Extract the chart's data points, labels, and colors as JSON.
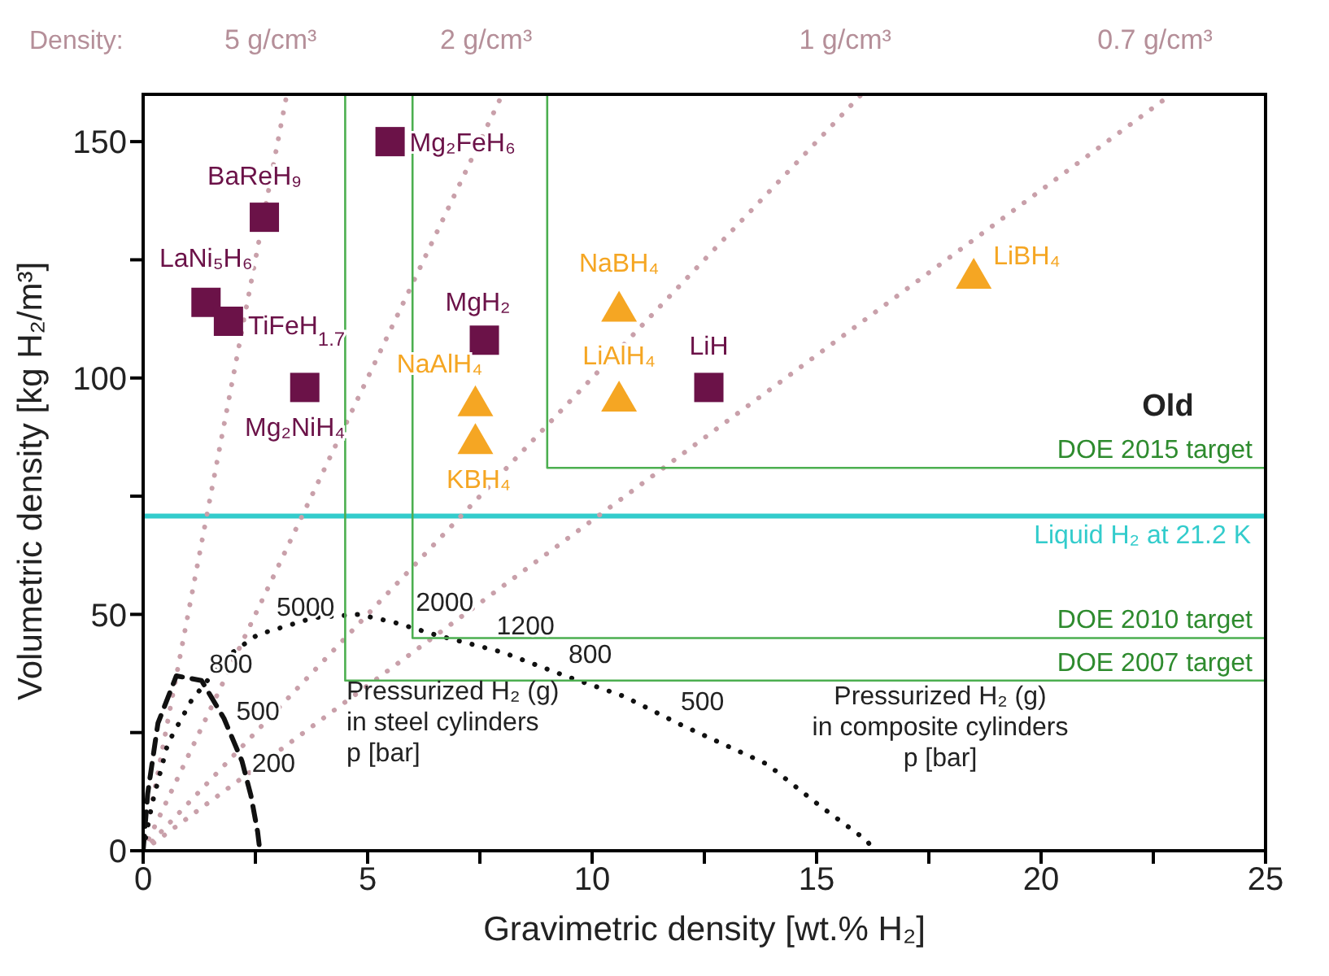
{
  "chart_data": {
    "type": "scatter",
    "xlabel": "Gravimetric density [wt.% H₂]",
    "ylabel": "Volumetric density [kg H₂/m³]",
    "xlim": [
      0,
      25
    ],
    "ylim": [
      0,
      160
    ],
    "xticks": [
      0,
      {
        "value": 2.5,
        "label": null
      },
      5,
      {
        "value": 7.5,
        "label": null
      },
      10,
      {
        "value": 12.5,
        "label": null
      },
      15,
      {
        "value": 17.5,
        "label": null
      },
      20,
      {
        "value": 22.5,
        "label": null
      },
      25
    ],
    "yticks": [
      0,
      {
        "value": 25,
        "label": null
      },
      50,
      {
        "value": 75,
        "label": null
      },
      100,
      {
        "value": 125,
        "label": null
      },
      150
    ],
    "series": [
      {
        "marker": "square",
        "color": "#6b1248",
        "x": [
          5.5,
          2.7,
          1.4,
          1.9,
          3.6,
          7.6,
          12.6
        ],
        "values": [
          150,
          134,
          116,
          112,
          98,
          108,
          98
        ]
      },
      {
        "marker": "triangle",
        "color": "#f5a623",
        "x": [
          10.6,
          10.6,
          7.4,
          7.4,
          18.5
        ],
        "values": [
          115,
          96,
          95,
          87,
          122
        ]
      },
      {
        "type": "line",
        "name": "5 g/cm³",
        "color": "#c9a0aa",
        "line_style": "dotted",
        "x": [
          0,
          3.2
        ],
        "values": [
          0,
          160
        ]
      },
      {
        "type": "line",
        "name": "2 g/cm³",
        "color": "#c9a0aa",
        "line_style": "dotted",
        "x": [
          0,
          8
        ],
        "values": [
          0,
          160
        ]
      },
      {
        "type": "line",
        "name": "1 g/cm³",
        "color": "#c9a0aa",
        "line_style": "dotted",
        "x": [
          0,
          16
        ],
        "values": [
          0,
          160
        ]
      },
      {
        "type": "line",
        "name": "0.7 g/cm³",
        "color": "#c9a0aa",
        "line_style": "dotted",
        "x": [
          0,
          22.9
        ],
        "values": [
          0,
          160
        ]
      },
      {
        "type": "line",
        "name": "DOE 2015 target",
        "color": "#4caf50",
        "line_style": "solid",
        "x": [
          9,
          9,
          25
        ],
        "values": [
          160,
          81,
          81
        ]
      },
      {
        "type": "line",
        "name": "DOE 2010 target",
        "color": "#4caf50",
        "line_style": "solid",
        "x": [
          6,
          6,
          25
        ],
        "values": [
          160,
          45,
          45
        ]
      },
      {
        "type": "line",
        "name": "DOE 2007 target",
        "color": "#4caf50",
        "line_style": "solid",
        "x": [
          4.5,
          4.5,
          25
        ],
        "values": [
          160,
          36,
          36
        ]
      },
      {
        "type": "line",
        "color": "#111111",
        "line_style": "dotted",
        "x": [
          0,
          0.2,
          0.55,
          1.07,
          1.85,
          2.55,
          3.8,
          4.8,
          5.6,
          6.5,
          8,
          9.4,
          10.7,
          11.9,
          13.9,
          15.1,
          16.1,
          16.3
        ],
        "values": [
          0,
          10,
          22.7,
          31.7,
          41,
          45.7,
          49.3,
          50,
          48.3,
          45.7,
          42,
          37,
          32.7,
          27,
          18.3,
          9.3,
          2.3,
          0
        ]
      },
      {
        "type": "line",
        "color": "#111111",
        "line_style": "dashed",
        "x": [
          0,
          0.1,
          0.33,
          0.74,
          1.3,
          1.8,
          2.2,
          2.4,
          2.55,
          2.6
        ],
        "values": [
          0,
          12,
          27,
          37,
          36,
          28,
          19,
          11.7,
          4,
          0
        ]
      }
    ],
    "ref_lines": [
      {
        "axis": "y",
        "value": 70.8,
        "label": "Liquid H₂ at 21.2 K",
        "color": "#33cccc"
      }
    ],
    "annotations": [
      "Density:",
      "Old",
      "Pressurized H₂ (g)\nin steel cylinders\np [bar]",
      "Pressurized H₂ (g)\nin composite cylinders\np [bar]",
      {
        "text": "Mg₂FeH₆",
        "x": 5.5,
        "y": 150
      },
      {
        "text": "BaReH₉",
        "x": 2.7,
        "y": 134
      },
      {
        "text": "LaNi₅H₆",
        "x": 1.4,
        "y": 116
      },
      {
        "text": "TiFeH$_{1.7}$",
        "x": 1.9,
        "y": 112
      },
      {
        "text": "Mg₂NiH₄",
        "x": 3.6,
        "y": 98
      },
      {
        "text": "MgH₂",
        "x": 7.6,
        "y": 108
      },
      {
        "text": "LiH",
        "x": 12.6,
        "y": 98
      },
      {
        "text": "NaBH₄",
        "x": 10.6,
        "y": 115
      },
      {
        "text": "LiAlH₄",
        "x": 10.6,
        "y": 96
      },
      {
        "text": "NaAlH₄",
        "x": 7.4,
        "y": 95
      },
      {
        "text": "KBH₄",
        "x": 7.4,
        "y": 87
      },
      {
        "text": "LiBH₄",
        "x": 18.5,
        "y": 122
      },
      {
        "text": "5000",
        "x": 2.9,
        "y": 47
      },
      {
        "text": "2000",
        "x": 6,
        "y": 48
      },
      {
        "text": "1200",
        "x": 7.8,
        "y": 43
      },
      {
        "text": "800",
        "x": 9.4,
        "y": 37
      },
      {
        "text": "500",
        "x": 11.9,
        "y": 27
      },
      {
        "text": "800",
        "x": 1.4,
        "y": 35
      },
      {
        "text": "500",
        "x": 2,
        "y": 25
      },
      {
        "text": "200",
        "x": 2.35,
        "y": 14
      }
    ]
  }
}
